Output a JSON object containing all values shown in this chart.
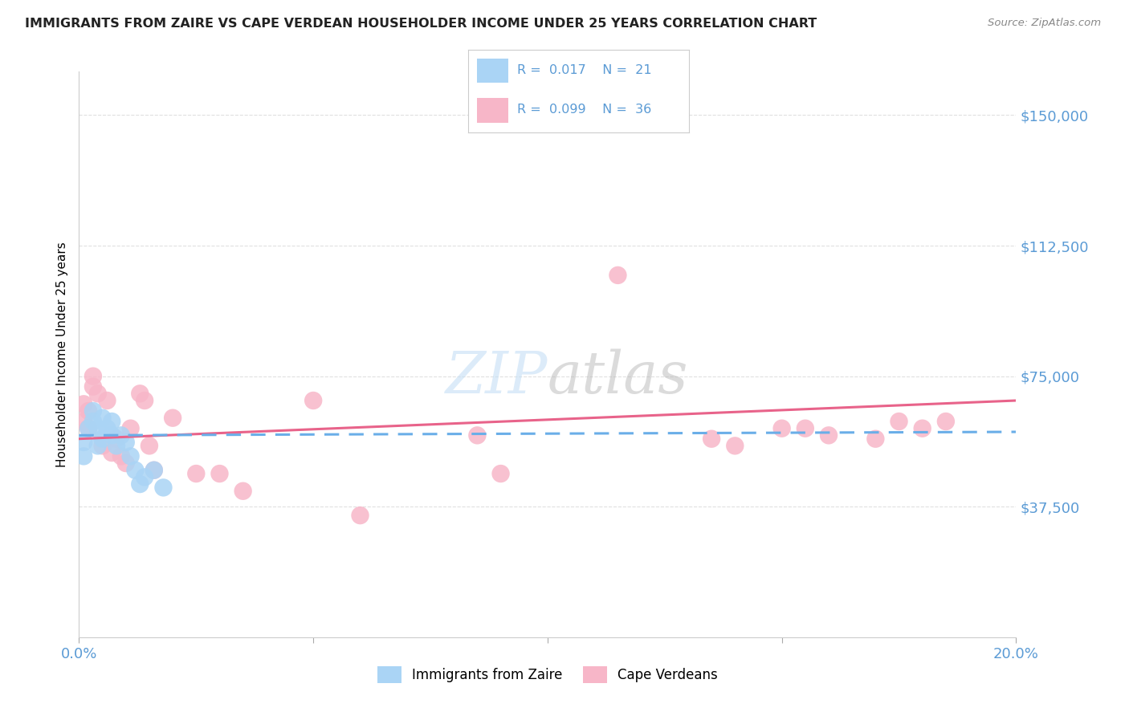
{
  "title": "IMMIGRANTS FROM ZAIRE VS CAPE VERDEAN HOUSEHOLDER INCOME UNDER 25 YEARS CORRELATION CHART",
  "source": "Source: ZipAtlas.com",
  "tick_color": "#5b9bd5",
  "ylabel": "Householder Income Under 25 years",
  "y_tick_labels": [
    "$37,500",
    "$75,000",
    "$112,500",
    "$150,000"
  ],
  "y_tick_values": [
    37500,
    75000,
    112500,
    150000
  ],
  "xlim": [
    0.0,
    0.2
  ],
  "ylim": [
    0,
    162500
  ],
  "legend_zaire_R": "0.017",
  "legend_zaire_N": "21",
  "legend_verde_R": "0.099",
  "legend_verde_N": "36",
  "zaire_color": "#aad4f5",
  "verde_color": "#f7b6c8",
  "zaire_line_color": "#6aaee8",
  "verde_line_color": "#e8638a",
  "background": "#ffffff",
  "grid_color": "#e0e0e0",
  "zaire_points_x": [
    0.001,
    0.001,
    0.002,
    0.003,
    0.003,
    0.004,
    0.004,
    0.005,
    0.005,
    0.006,
    0.007,
    0.007,
    0.008,
    0.009,
    0.01,
    0.011,
    0.012,
    0.013,
    0.014,
    0.016,
    0.018
  ],
  "zaire_points_y": [
    56000,
    52000,
    60000,
    65000,
    62000,
    60000,
    55000,
    63000,
    57000,
    60000,
    62000,
    58000,
    55000,
    58000,
    56000,
    52000,
    48000,
    44000,
    46000,
    48000,
    43000
  ],
  "verde_points_x": [
    0.001,
    0.001,
    0.002,
    0.002,
    0.003,
    0.003,
    0.004,
    0.005,
    0.006,
    0.007,
    0.008,
    0.009,
    0.01,
    0.011,
    0.013,
    0.014,
    0.015,
    0.016,
    0.02,
    0.025,
    0.03,
    0.035,
    0.05,
    0.06,
    0.085,
    0.09,
    0.115,
    0.135,
    0.14,
    0.15,
    0.155,
    0.16,
    0.17,
    0.175,
    0.18,
    0.185
  ],
  "verde_points_y": [
    67000,
    62000,
    65000,
    60000,
    75000,
    72000,
    70000,
    55000,
    68000,
    53000,
    57000,
    52000,
    50000,
    60000,
    70000,
    68000,
    55000,
    48000,
    63000,
    47000,
    47000,
    42000,
    68000,
    35000,
    58000,
    47000,
    104000,
    57000,
    55000,
    60000,
    60000,
    58000,
    57000,
    62000,
    60000,
    62000
  ],
  "zaire_line_x0": 0.0,
  "zaire_line_y0": 58000,
  "zaire_line_x1": 0.2,
  "zaire_line_y1": 59000,
  "verde_line_x0": 0.0,
  "verde_line_y0": 57000,
  "verde_line_x1": 0.2,
  "verde_line_y1": 68000
}
